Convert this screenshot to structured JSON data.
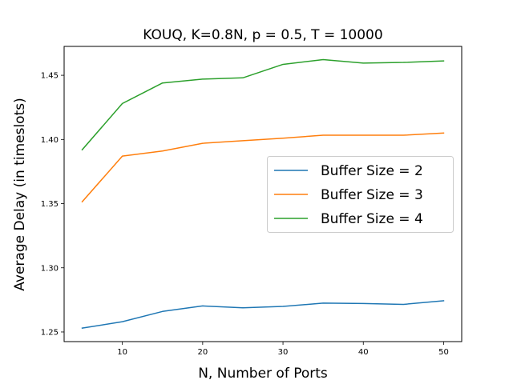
{
  "chart_data": {
    "type": "line",
    "title": "KOUQ, K=0.8N, p = 0.5, T = 10000",
    "xlabel": "N, Number of Ports",
    "ylabel": "Average Delay (in timeslots)",
    "x": [
      5,
      10,
      15,
      20,
      25,
      30,
      35,
      40,
      45,
      50
    ],
    "xlim": [
      2.75,
      52.25
    ],
    "ylim": [
      1.2425,
      1.4725
    ],
    "xticks": [
      10,
      20,
      30,
      40,
      50
    ],
    "yticks": [
      1.25,
      1.3,
      1.35,
      1.4,
      1.45
    ],
    "ytick_labels": [
      "1.25",
      "1.30",
      "1.35",
      "1.40",
      "1.45"
    ],
    "grid": false,
    "legend_position": "center-right",
    "series": [
      {
        "name": "Buffer Size = 2",
        "color": "#1f77b4",
        "values": [
          1.253,
          1.258,
          1.266,
          1.2703,
          1.2688,
          1.2699,
          1.2725,
          1.2722,
          1.2715,
          1.2743
        ]
      },
      {
        "name": "Buffer Size = 3",
        "color": "#ff7f0e",
        "values": [
          1.3515,
          1.387,
          1.391,
          1.397,
          1.399,
          1.401,
          1.4033,
          1.4033,
          1.4033,
          1.405
        ]
      },
      {
        "name": "Buffer Size = 4",
        "color": "#2ca02c",
        "values": [
          1.392,
          1.428,
          1.444,
          1.447,
          1.448,
          1.4585,
          1.4622,
          1.4595,
          1.46,
          1.4612
        ]
      }
    ]
  }
}
